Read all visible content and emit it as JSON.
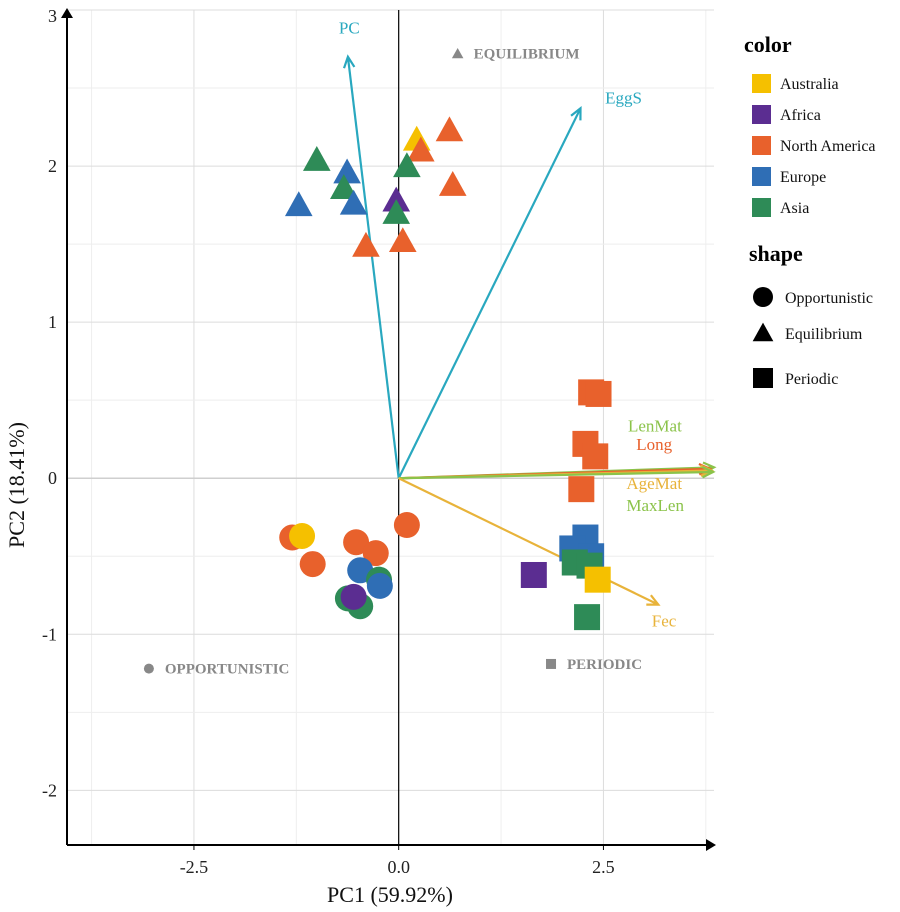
{
  "chart_data": {
    "type": "scatter",
    "subtype": "pca-biplot",
    "xlabel": "PC1 (59.92%)",
    "ylabel": "PC2 (18.41%)",
    "xlim": [
      -4.05,
      3.85
    ],
    "ylim": [
      -2.35,
      3.0
    ],
    "x_ticks": [
      -2.5,
      0.0,
      2.5
    ],
    "x_tick_labels": [
      "-2.5",
      "0.0",
      "2.5"
    ],
    "y_ticks": [
      -2,
      -1,
      0,
      1,
      2,
      3
    ],
    "y_tick_labels": [
      "-2",
      "-1",
      "0",
      "1",
      "2",
      "3"
    ],
    "grid": true,
    "colors": {
      "Australia": "#f5c000",
      "Africa": "#5b2d91",
      "North America": "#e8612c",
      "Europe": "#2f6eb5",
      "Asia": "#2e8b57"
    },
    "legend": {
      "color_title": "color",
      "color_items": [
        "Australia",
        "Africa",
        "North America",
        "Europe",
        "Asia"
      ],
      "shape_title": "shape",
      "shape_items": [
        {
          "label": "Opportunistic",
          "shape": "circle"
        },
        {
          "label": "Equilibrium",
          "shape": "triangle"
        },
        {
          "label": "Periodic",
          "shape": "square"
        }
      ]
    },
    "anchors": [
      {
        "label": "EQUILIBRIUM",
        "shape": "triangle",
        "x": 0.72,
        "y": 2.72
      },
      {
        "label": "OPPORTUNISTIC",
        "shape": "circle",
        "x": -3.05,
        "y": -1.22
      },
      {
        "label": "PERIODIC",
        "shape": "square",
        "x": 1.86,
        "y": -1.19
      }
    ],
    "vectors": [
      {
        "label": "PC",
        "x": -0.62,
        "y": 2.7,
        "color": "#29a8bf",
        "label_x": -0.73,
        "label_y": 2.85
      },
      {
        "label": "EggS",
        "x": 2.22,
        "y": 2.37,
        "color": "#29a8bf",
        "label_x": 2.52,
        "label_y": 2.4
      },
      {
        "label": "LenMat",
        "x": 3.85,
        "y": 0.07,
        "color": "#8bc34a",
        "label_x": 2.8,
        "label_y": 0.3
      },
      {
        "label": "Long",
        "x": 3.8,
        "y": 0.06,
        "color": "#e8612c",
        "label_x": 2.9,
        "label_y": 0.18
      },
      {
        "label": "AgeMat",
        "x": 3.82,
        "y": 0.05,
        "color": "#e8b33a",
        "label_x": 2.78,
        "label_y": -0.07
      },
      {
        "label": "MaxLen",
        "x": 3.84,
        "y": 0.04,
        "color": "#8bc34a",
        "label_x": 2.78,
        "label_y": -0.21
      },
      {
        "label": "Fec",
        "x": 3.17,
        "y": -0.81,
        "color": "#e8b33a",
        "label_x": 3.09,
        "label_y": -0.95
      }
    ],
    "points": [
      {
        "x": 0.22,
        "y": 2.17,
        "color": "Australia",
        "shape": "triangle"
      },
      {
        "x": 0.27,
        "y": 2.1,
        "color": "North America",
        "shape": "triangle"
      },
      {
        "x": 0.62,
        "y": 2.23,
        "color": "North America",
        "shape": "triangle"
      },
      {
        "x": 0.66,
        "y": 1.88,
        "color": "North America",
        "shape": "triangle"
      },
      {
        "x": 0.05,
        "y": 1.52,
        "color": "North America",
        "shape": "triangle"
      },
      {
        "x": -0.4,
        "y": 1.49,
        "color": "North America",
        "shape": "triangle"
      },
      {
        "x": -1.0,
        "y": 2.04,
        "color": "Asia",
        "shape": "triangle"
      },
      {
        "x": -0.63,
        "y": 1.96,
        "color": "Europe",
        "shape": "triangle"
      },
      {
        "x": -0.67,
        "y": 1.86,
        "color": "Asia",
        "shape": "triangle"
      },
      {
        "x": -1.22,
        "y": 1.75,
        "color": "Europe",
        "shape": "triangle"
      },
      {
        "x": -0.55,
        "y": 1.76,
        "color": "Europe",
        "shape": "triangle"
      },
      {
        "x": -0.03,
        "y": 1.78,
        "color": "Africa",
        "shape": "triangle"
      },
      {
        "x": -0.03,
        "y": 1.7,
        "color": "Asia",
        "shape": "triangle"
      },
      {
        "x": 0.1,
        "y": 2.0,
        "color": "Asia",
        "shape": "triangle"
      },
      {
        "x": 2.35,
        "y": 0.55,
        "color": "North America",
        "shape": "square"
      },
      {
        "x": 2.44,
        "y": 0.54,
        "color": "North America",
        "shape": "square"
      },
      {
        "x": 2.28,
        "y": 0.22,
        "color": "North America",
        "shape": "square"
      },
      {
        "x": 2.4,
        "y": 0.14,
        "color": "North America",
        "shape": "square"
      },
      {
        "x": 2.23,
        "y": -0.07,
        "color": "North America",
        "shape": "square"
      },
      {
        "x": 2.28,
        "y": -0.38,
        "color": "Europe",
        "shape": "square"
      },
      {
        "x": 2.12,
        "y": -0.45,
        "color": "Europe",
        "shape": "square"
      },
      {
        "x": 2.35,
        "y": -0.5,
        "color": "Europe",
        "shape": "square"
      },
      {
        "x": 2.15,
        "y": -0.54,
        "color": "Asia",
        "shape": "square"
      },
      {
        "x": 2.33,
        "y": -0.56,
        "color": "Asia",
        "shape": "square"
      },
      {
        "x": 1.65,
        "y": -0.62,
        "color": "Africa",
        "shape": "square"
      },
      {
        "x": 2.43,
        "y": -0.65,
        "color": "Australia",
        "shape": "square"
      },
      {
        "x": 2.3,
        "y": -0.89,
        "color": "Asia",
        "shape": "square"
      },
      {
        "x": -1.3,
        "y": -0.38,
        "color": "North America",
        "shape": "circle"
      },
      {
        "x": -1.05,
        "y": -0.55,
        "color": "North America",
        "shape": "circle"
      },
      {
        "x": -1.18,
        "y": -0.37,
        "color": "Australia",
        "shape": "circle"
      },
      {
        "x": -0.52,
        "y": -0.41,
        "color": "North America",
        "shape": "circle"
      },
      {
        "x": -0.28,
        "y": -0.48,
        "color": "North America",
        "shape": "circle"
      },
      {
        "x": 0.1,
        "y": -0.3,
        "color": "North America",
        "shape": "circle"
      },
      {
        "x": -0.47,
        "y": -0.59,
        "color": "Europe",
        "shape": "circle"
      },
      {
        "x": -0.24,
        "y": -0.65,
        "color": "Asia",
        "shape": "circle"
      },
      {
        "x": -0.23,
        "y": -0.69,
        "color": "Europe",
        "shape": "circle"
      },
      {
        "x": -0.62,
        "y": -0.77,
        "color": "Asia",
        "shape": "circle"
      },
      {
        "x": -0.47,
        "y": -0.82,
        "color": "Asia",
        "shape": "circle"
      },
      {
        "x": -0.55,
        "y": -0.76,
        "color": "Africa",
        "shape": "circle"
      }
    ]
  }
}
